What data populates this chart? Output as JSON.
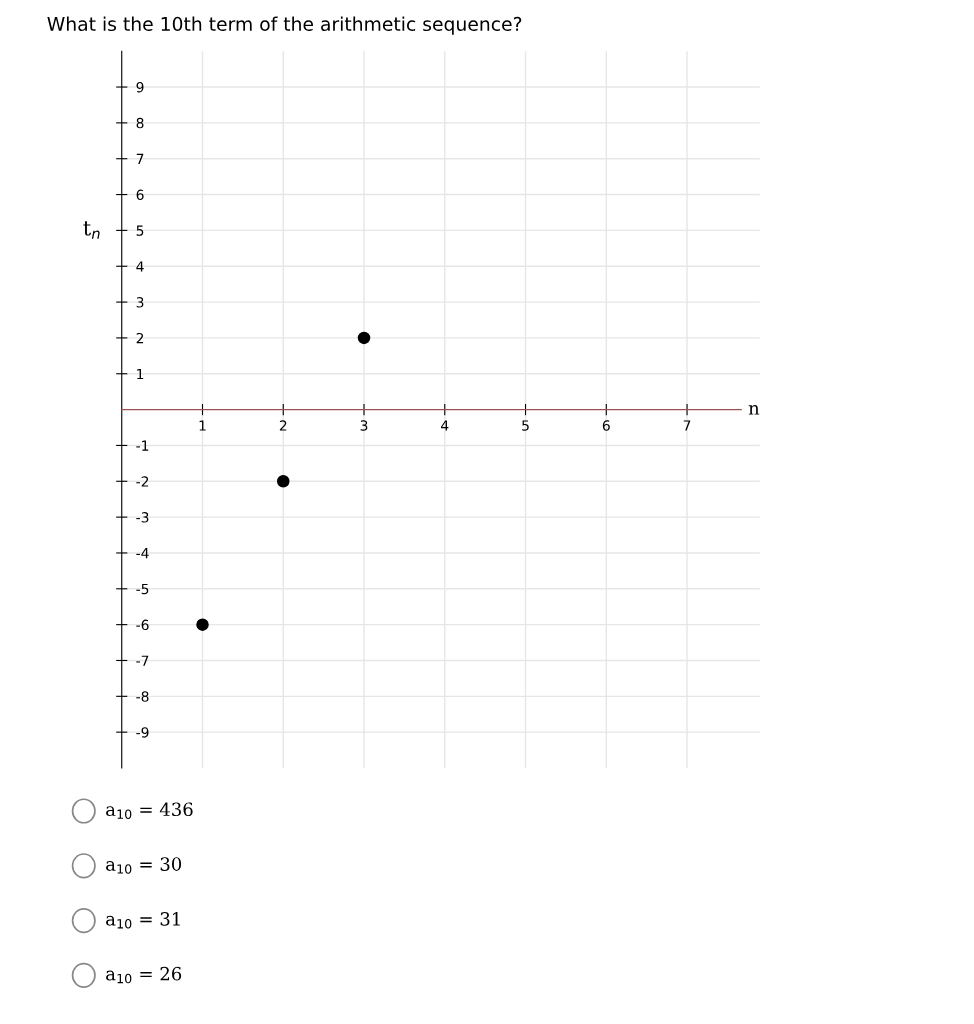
{
  "chart_data": {
    "type": "scatter",
    "title": "What is the 10th term of the arithmetic sequence?",
    "xlabel": "n",
    "ylabel": "t$_{n}$",
    "x": [
      1,
      2,
      3
    ],
    "values": [
      -6,
      -2,
      2
    ],
    "color": "#000000",
    "marker": "circle",
    "xlim": [
      0,
      7.9
    ],
    "ylim": [
      -10,
      10
    ],
    "xticks": [
      1,
      2,
      3,
      4,
      5,
      6,
      7
    ],
    "yticks": [
      -9,
      -8,
      -7,
      -6,
      -5,
      -4,
      -3,
      -2,
      -1,
      1,
      2,
      3,
      4,
      5,
      6,
      7,
      8,
      9
    ],
    "grid": true,
    "annotations": [
      "a$_{10}$ = 436",
      "a$_{10}$ = 30",
      "a$_{10}$ = 31",
      "a$_{10}$ = 26"
    ]
  }
}
